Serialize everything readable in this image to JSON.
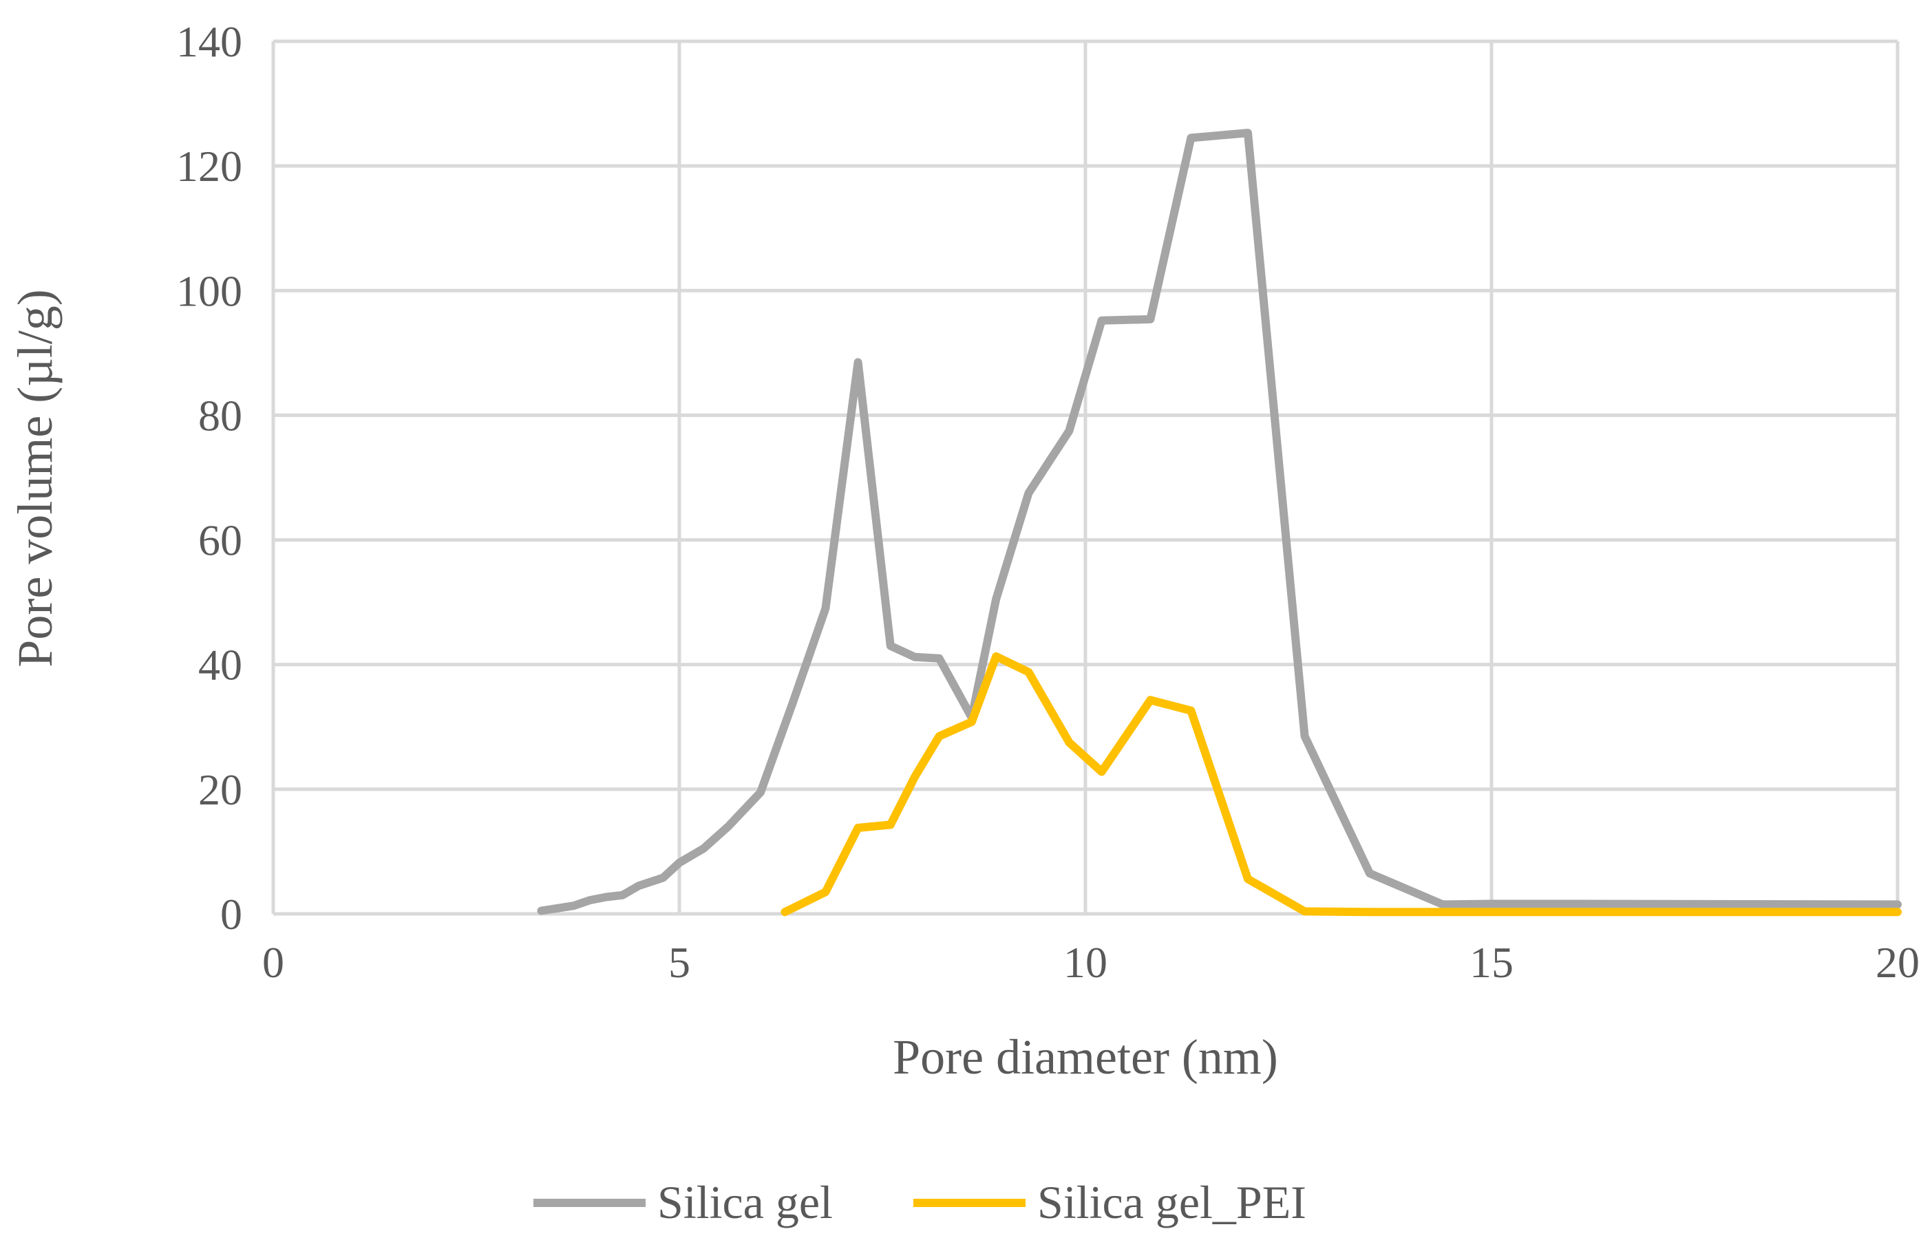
{
  "chart_data": {
    "type": "line",
    "xlabel": "Pore diameter (nm)",
    "ylabel": "Pore volume (µl/g)",
    "xlim": [
      0,
      20
    ],
    "ylim": [
      0,
      140
    ],
    "xticks": [
      0,
      5,
      10,
      15,
      20
    ],
    "yticks": [
      0,
      20,
      40,
      60,
      80,
      100,
      120,
      140
    ],
    "grid": true,
    "legend_position": "bottom",
    "series": [
      {
        "name": "Silica gel",
        "color": "#a5a5a5",
        "x": [
          3.3,
          3.7,
          3.9,
          4.1,
          4.3,
          4.5,
          4.8,
          5.0,
          5.3,
          5.6,
          6.0,
          6.4,
          6.8,
          7.2,
          7.6,
          7.9,
          8.2,
          8.6,
          8.9,
          9.3,
          9.8,
          10.2,
          10.8,
          11.3,
          12.0,
          12.7,
          13.5,
          14.4,
          15.0,
          16.0,
          20.0
        ],
        "y": [
          0.5,
          1.3,
          2.2,
          2.7,
          3.0,
          4.5,
          5.8,
          8.2,
          10.5,
          14.0,
          19.5,
          34.0,
          49.0,
          88.5,
          43.0,
          41.2,
          41.0,
          31.5,
          50.5,
          67.5,
          77.5,
          95.2,
          95.4,
          124.5,
          125.3,
          28.5,
          6.5,
          1.5,
          1.6,
          1.6,
          1.5
        ]
      },
      {
        "name": "Silica gel_PEI",
        "color": "#ffc000",
        "x": [
          6.3,
          6.8,
          7.2,
          7.6,
          7.9,
          8.2,
          8.6,
          8.9,
          9.3,
          9.8,
          10.2,
          10.8,
          11.3,
          12.0,
          12.7,
          13.5,
          15.0,
          20.0
        ],
        "y": [
          0.3,
          3.5,
          13.8,
          14.3,
          22.0,
          28.5,
          30.8,
          41.3,
          38.8,
          27.5,
          22.8,
          34.3,
          32.6,
          5.6,
          0.4,
          0.3,
          0.3,
          0.3
        ]
      }
    ]
  }
}
